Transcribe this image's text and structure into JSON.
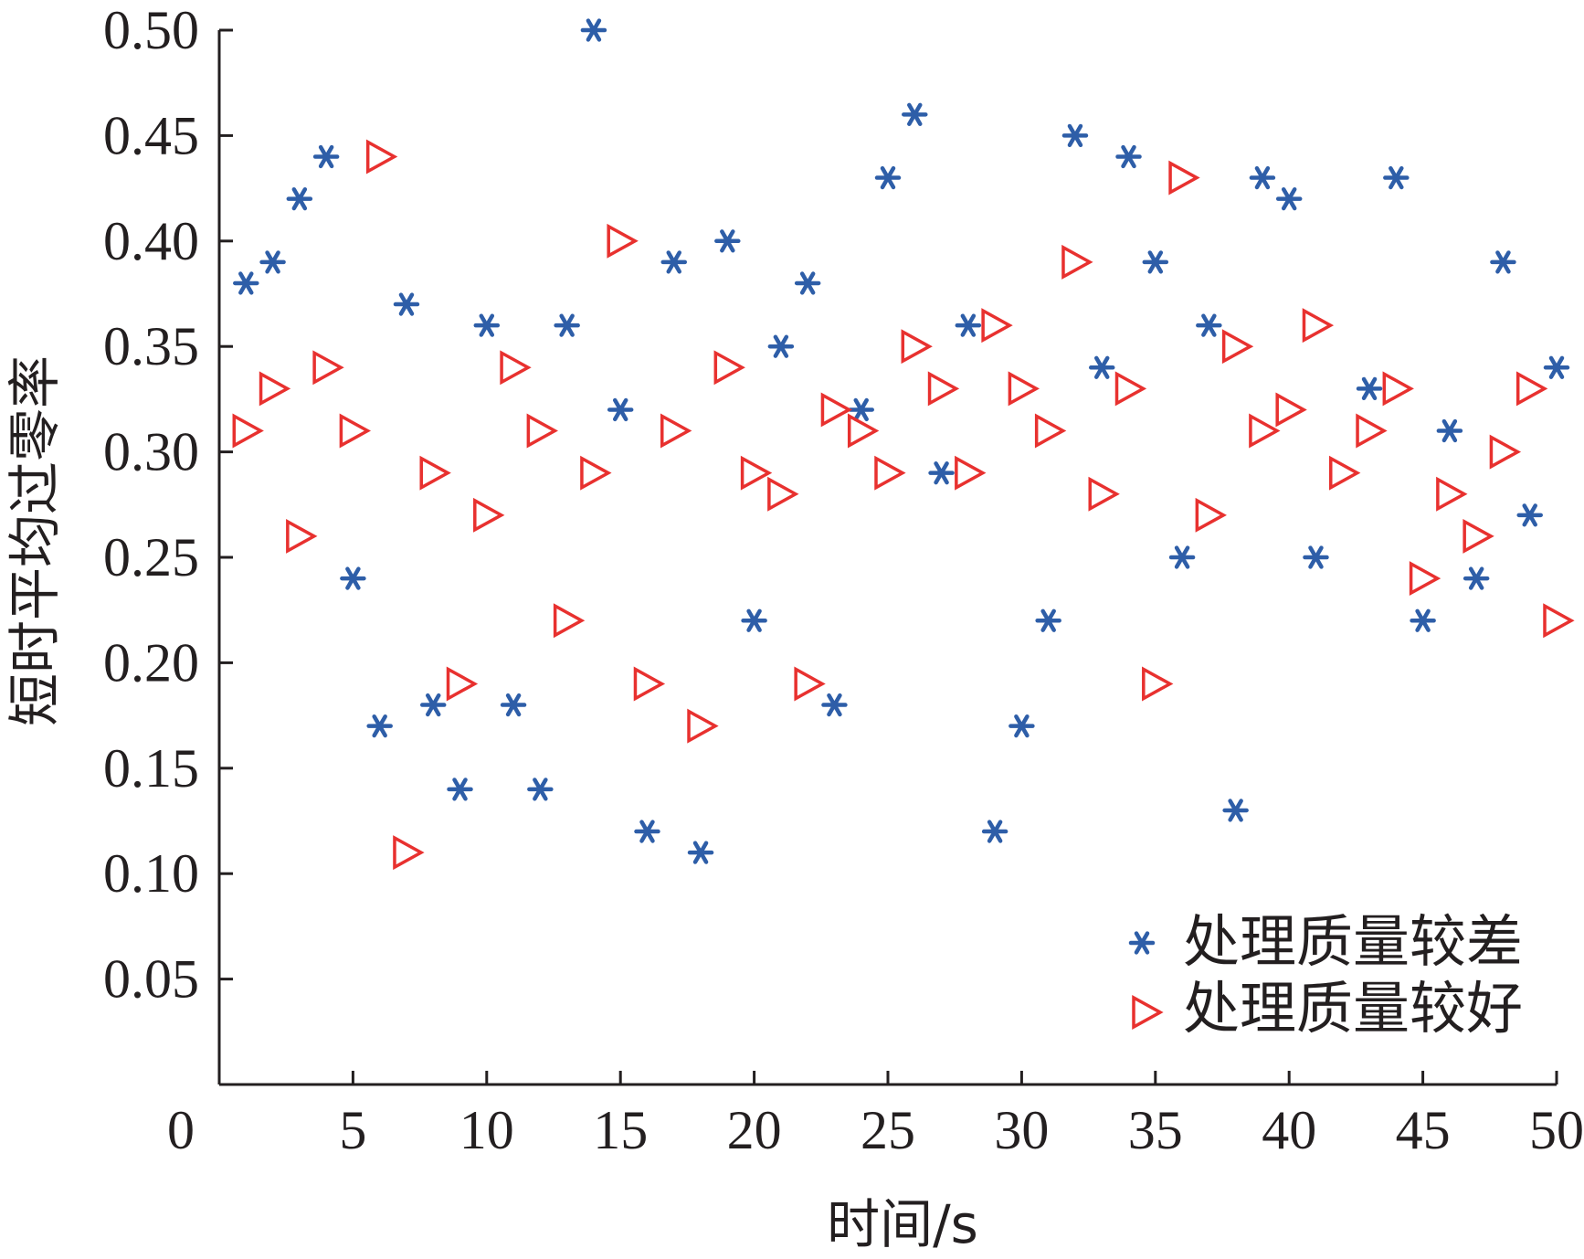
{
  "chart_data": {
    "type": "scatter",
    "title": "",
    "xlabel": "时间/s",
    "ylabel": "短时平均过零率",
    "xlim": [
      0,
      50
    ],
    "ylim": [
      0,
      0.5
    ],
    "x_ticks": [
      "0",
      "5",
      "10",
      "15",
      "20",
      "25",
      "30",
      "35",
      "40",
      "45",
      "50"
    ],
    "y_ticks": [
      "0.05",
      "0.10",
      "0.15",
      "0.20",
      "0.25",
      "0.30",
      "0.35",
      "0.40",
      "0.45",
      "0.50"
    ],
    "grid": false,
    "legend_position": "bottom-right",
    "series": [
      {
        "name": "处理质量较差",
        "marker": "asterisk",
        "color": "#2e5ea8",
        "x": [
          1,
          2,
          3,
          4,
          5,
          6,
          7,
          8,
          9,
          10,
          11,
          12,
          13,
          14,
          15,
          16,
          17,
          18,
          19,
          20,
          21,
          22,
          23,
          24,
          25,
          26,
          27,
          28,
          29,
          30,
          31,
          32,
          33,
          34,
          35,
          36,
          37,
          38,
          39,
          40,
          41,
          42,
          43,
          44,
          45,
          46,
          47,
          48,
          49,
          50
        ],
        "y": [
          0.38,
          0.39,
          0.42,
          0.44,
          0.24,
          0.17,
          0.37,
          0.18,
          0.14,
          0.36,
          0.18,
          0.14,
          0.36,
          0.5,
          0.32,
          0.12,
          0.39,
          0.11,
          0.4,
          0.22,
          0.35,
          0.38,
          0.18,
          0.32,
          0.43,
          0.46,
          0.29,
          0.36,
          0.12,
          0.17,
          0.22,
          0.45,
          0.34,
          0.44,
          0.39,
          0.25,
          0.36,
          0.13,
          0.43,
          0.42,
          0.25,
          null,
          0.33,
          0.43,
          0.22,
          0.31,
          0.24,
          0.39,
          0.27,
          0.34
        ]
      },
      {
        "name": "处理质量较好",
        "marker": "triangle-right",
        "color": "#e8312f",
        "x": [
          1,
          2,
          3,
          4,
          5,
          6,
          7,
          8,
          9,
          10,
          11,
          12,
          13,
          14,
          15,
          16,
          17,
          18,
          19,
          20,
          21,
          22,
          23,
          24,
          25,
          26,
          27,
          28,
          29,
          30,
          31,
          32,
          33,
          34,
          35,
          36,
          37,
          38,
          39,
          40,
          41,
          42,
          43,
          44,
          45,
          46,
          47,
          48,
          49,
          50
        ],
        "y": [
          0.31,
          0.33,
          0.26,
          0.34,
          0.31,
          0.44,
          0.11,
          0.29,
          0.19,
          0.27,
          0.34,
          0.31,
          0.22,
          0.29,
          0.4,
          0.19,
          0.31,
          0.17,
          0.34,
          0.29,
          0.28,
          0.19,
          0.32,
          0.31,
          0.29,
          0.35,
          0.33,
          0.29,
          0.36,
          0.33,
          0.31,
          0.39,
          0.28,
          0.33,
          0.19,
          0.43,
          0.27,
          0.35,
          0.31,
          0.32,
          0.36,
          0.29,
          0.31,
          0.33,
          0.24,
          0.28,
          0.26,
          0.3,
          0.33,
          0.22
        ]
      }
    ]
  }
}
